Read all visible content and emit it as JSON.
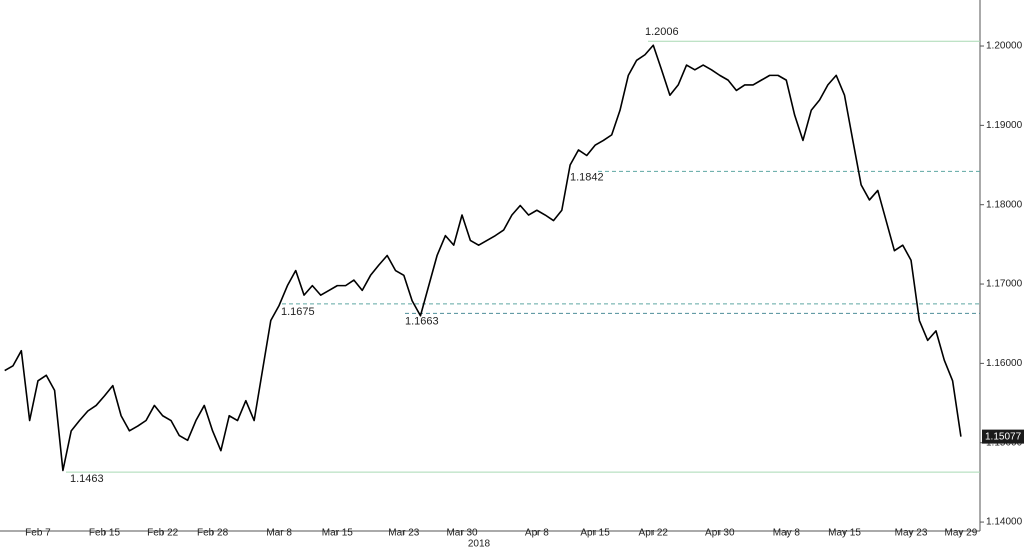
{
  "chart_data": {
    "type": "line",
    "xlabel": "2018",
    "categories": [
      null,
      null,
      null,
      null,
      "Feb 7",
      null,
      null,
      null,
      null,
      null,
      null,
      null,
      "Feb 15",
      null,
      null,
      null,
      null,
      null,
      null,
      "Feb 22",
      null,
      null,
      null,
      null,
      null,
      "Feb 28",
      null,
      null,
      null,
      null,
      null,
      null,
      null,
      "Mar 8",
      null,
      null,
      null,
      null,
      null,
      null,
      "Mar 15",
      null,
      null,
      null,
      null,
      null,
      null,
      null,
      "Mar 23",
      null,
      null,
      null,
      null,
      null,
      null,
      "Mar 30",
      null,
      null,
      null,
      null,
      null,
      null,
      null,
      null,
      "Apr 8",
      null,
      null,
      null,
      null,
      null,
      null,
      "Apr 15",
      null,
      null,
      null,
      null,
      null,
      null,
      "Apr 22",
      null,
      null,
      null,
      null,
      null,
      null,
      null,
      "Apr 30",
      null,
      null,
      null,
      null,
      null,
      null,
      null,
      "May 8",
      null,
      null,
      null,
      null,
      null,
      null,
      "May 15",
      null,
      null,
      null,
      null,
      null,
      null,
      null,
      "May 23",
      null,
      null,
      null,
      null,
      null,
      "May 29"
    ],
    "series": [
      {
        "color": "#000000",
        "values": [
          1.1591,
          1.1597,
          1.1616,
          1.1528,
          1.1578,
          1.1585,
          1.1566,
          1.1465,
          1.1515,
          1.1528,
          1.154,
          1.1547,
          1.1559,
          1.1572,
          1.1534,
          1.1515,
          1.1521,
          1.1528,
          1.1547,
          1.1534,
          1.1528,
          1.1509,
          1.1503,
          1.1528,
          1.1547,
          1.1515,
          1.149,
          1.1534,
          1.1528,
          1.1553,
          1.1528,
          1.1591,
          1.1654,
          1.1673,
          1.1698,
          1.1717,
          1.1686,
          1.1698,
          1.1686,
          1.1692,
          1.1698,
          1.1698,
          1.1705,
          1.1692,
          1.1711,
          1.1724,
          1.1736,
          1.1717,
          1.1711,
          1.1679,
          1.166,
          1.1698,
          1.1736,
          1.1761,
          1.1749,
          1.1787,
          1.1755,
          1.1749,
          1.1755,
          1.1761,
          1.1768,
          1.1787,
          1.1799,
          1.1787,
          1.1793,
          1.1787,
          1.178,
          1.1793,
          1.185,
          1.1869,
          1.1862,
          1.1875,
          1.1881,
          1.1888,
          1.1919,
          1.1963,
          1.1982,
          1.1989,
          1.2001,
          1.197,
          1.1938,
          1.1951,
          1.1976,
          1.197,
          1.1976,
          1.197,
          1.1963,
          1.1957,
          1.1944,
          1.1951,
          1.1951,
          1.1957,
          1.1963,
          1.1963,
          1.1957,
          1.1913,
          1.1881,
          1.1919,
          1.1932,
          1.1951,
          1.1963,
          1.1938,
          1.1881,
          1.1825,
          1.1806,
          1.1818,
          1.178,
          1.1742,
          1.1749,
          1.173,
          1.1654,
          1.1629,
          1.1641,
          1.1604,
          1.1578,
          1.15077
        ]
      }
    ],
    "ylim": [
      1.139,
      1.2058
    ],
    "yticks": [
      {
        "value": 1.14,
        "label": "1.14000"
      },
      {
        "value": 1.15,
        "label": "1.15000"
      },
      {
        "value": 1.16,
        "label": "1.16000"
      },
      {
        "value": 1.17,
        "label": "1.17000"
      },
      {
        "value": 1.18,
        "label": "1.18000"
      },
      {
        "value": 1.19,
        "label": "1.19000"
      },
      {
        "value": 1.2,
        "label": "1.20000"
      }
    ],
    "grid": false,
    "levels": [
      {
        "value": 1.2006,
        "style": "solid",
        "color": "#a9d9b4"
      },
      {
        "value": 1.1842,
        "style": "dashed",
        "color": "#5fa7a3"
      },
      {
        "value": 1.1675,
        "style": "dashed",
        "color": "#5fa7a3"
      },
      {
        "value": 1.1663,
        "style": "dashed",
        "color": "#4f8f9a"
      },
      {
        "value": 1.1463,
        "style": "solid",
        "color": "#a9d9b4"
      }
    ]
  }
}
